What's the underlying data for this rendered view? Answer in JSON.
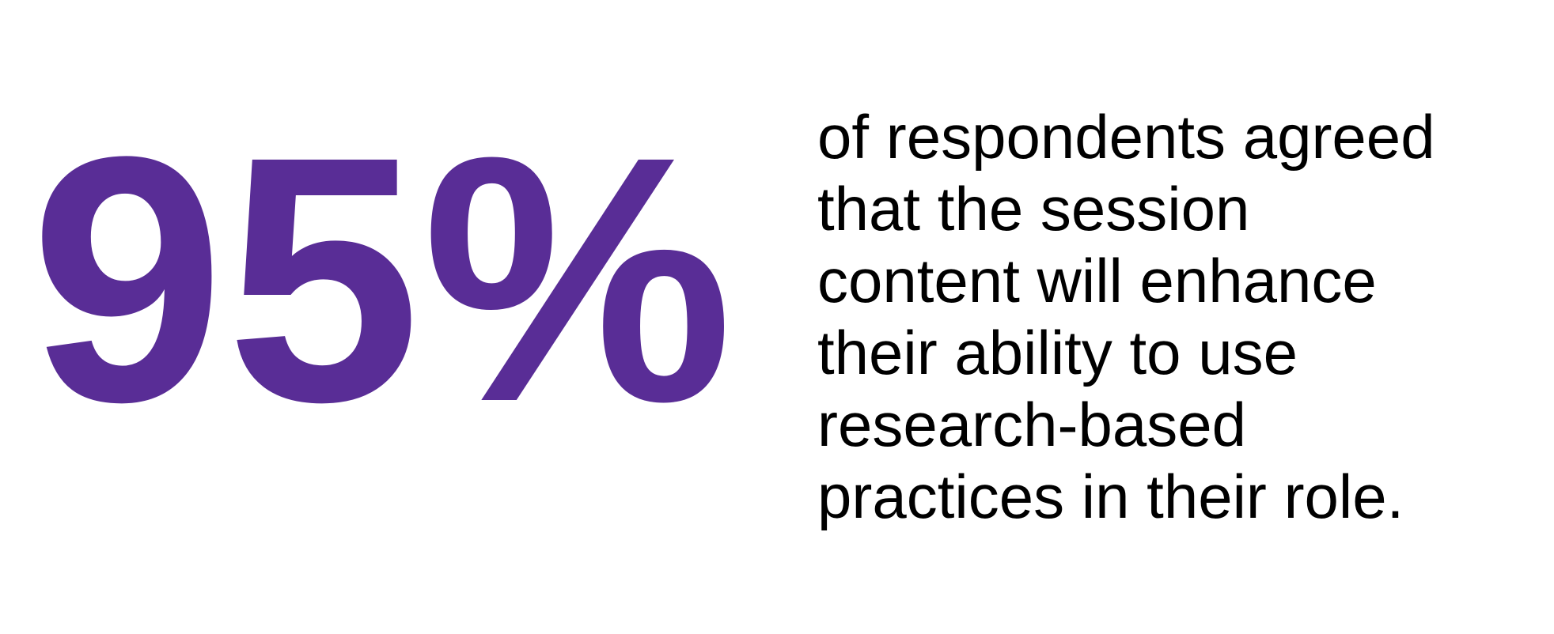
{
  "stat": {
    "value": "95%",
    "color": "#592d96"
  },
  "description": {
    "lines": [
      "of respondents agreed",
      "that the session",
      "content will enhance",
      "their ability to use",
      "research-based",
      "practices in their role."
    ]
  }
}
